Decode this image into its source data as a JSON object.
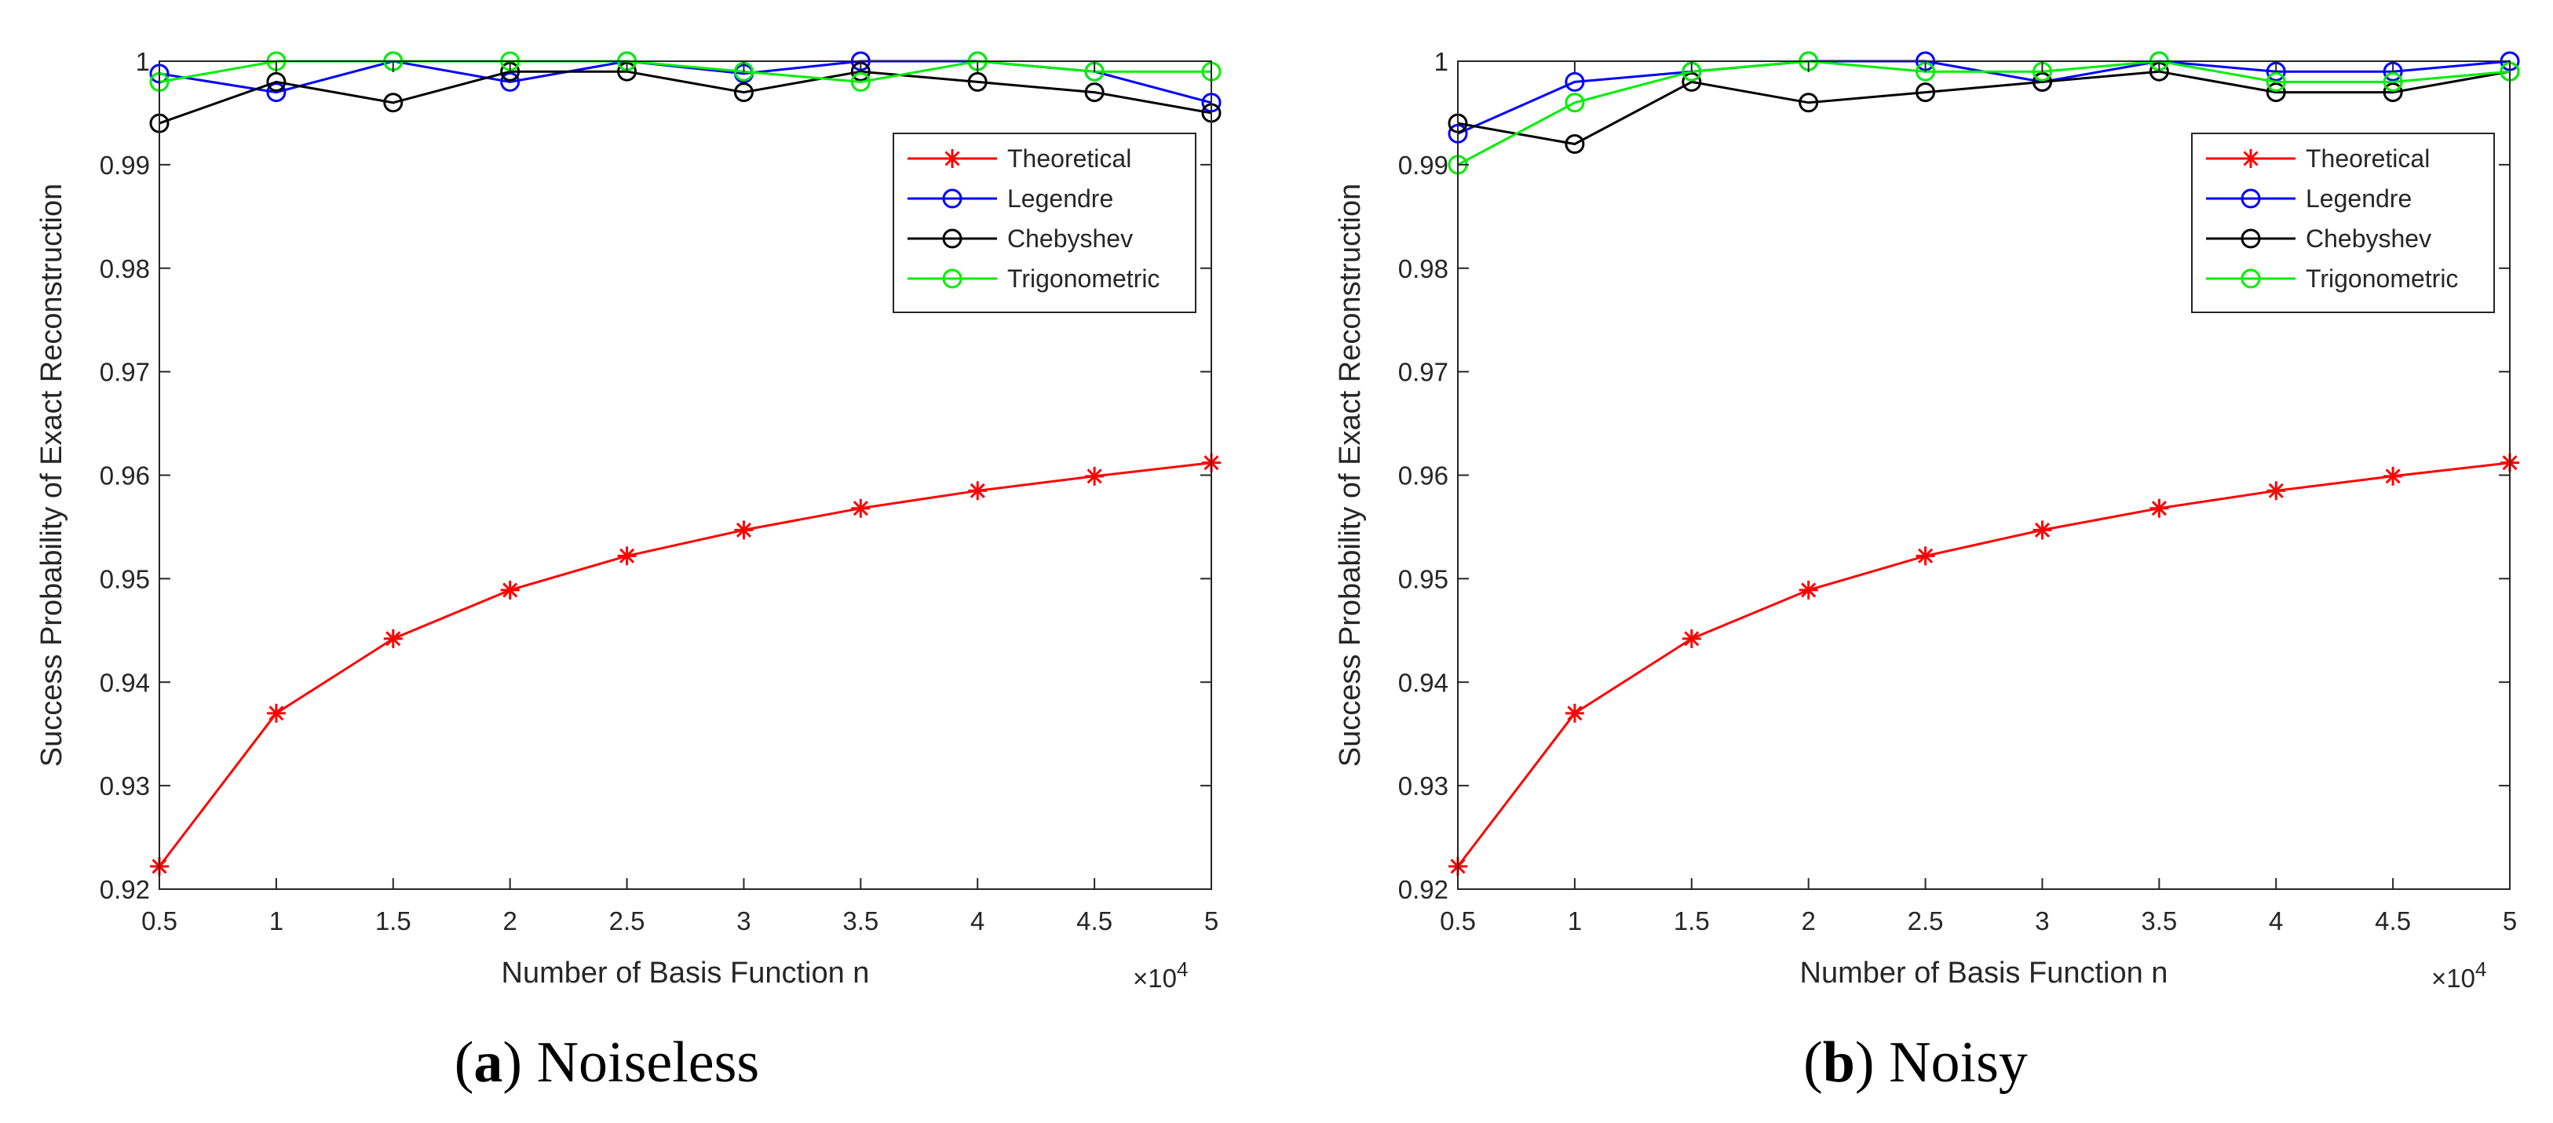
{
  "chart_data": [
    {
      "type": "line",
      "caption_letter": "a",
      "caption_text": "Noiseless",
      "caption_open": "(",
      "caption_close": ")",
      "xlabel": "Number of Basis Function n",
      "ylabel": "Success Probability of Exact Reconstruction",
      "x_exponent_base": "×10",
      "x_exponent_power": "4",
      "xlim": [
        0.5,
        5
      ],
      "ylim": [
        0.92,
        1.0
      ],
      "x_ticks": [
        0.5,
        1,
        1.5,
        2,
        2.5,
        3,
        3.5,
        4,
        4.5,
        5
      ],
      "x_tick_labels": [
        "0.5",
        "1",
        "1.5",
        "2",
        "2.5",
        "3",
        "3.5",
        "4",
        "4.5",
        "5"
      ],
      "y_ticks": [
        0.92,
        0.93,
        0.94,
        0.95,
        0.96,
        0.97,
        0.98,
        0.99,
        1.0
      ],
      "y_tick_labels": [
        "0.92",
        "0.93",
        "0.94",
        "0.95",
        "0.96",
        "0.97",
        "0.98",
        "0.99",
        "1"
      ],
      "legend_position": "top-right",
      "x": [
        0.5,
        1,
        1.5,
        2,
        2.5,
        3,
        3.5,
        4,
        4.5,
        5
      ],
      "series": [
        {
          "name": "Theoretical",
          "color": "#ff0000",
          "marker": "star",
          "values": [
            0.9222,
            0.937,
            0.9442,
            0.9489,
            0.9522,
            0.9547,
            0.9568,
            0.9585,
            0.9599,
            0.9612
          ]
        },
        {
          "name": "Legendre",
          "color": "#0000ff",
          "marker": "circle",
          "values": [
            0.9988,
            0.997,
            1.0,
            0.998,
            1.0,
            0.9988,
            1.0,
            1.0,
            0.999,
            0.996
          ]
        },
        {
          "name": "Chebyshev",
          "color": "#000000",
          "marker": "circle",
          "values": [
            0.994,
            0.998,
            0.996,
            0.999,
            0.999,
            0.997,
            0.999,
            0.998,
            0.997,
            0.995
          ]
        },
        {
          "name": "Trigonometric",
          "color": "#00ee00",
          "marker": "circle",
          "values": [
            0.998,
            1.0,
            1.0,
            1.0,
            1.0,
            0.999,
            0.998,
            1.0,
            0.999,
            0.999
          ]
        }
      ]
    },
    {
      "type": "line",
      "caption_letter": "b",
      "caption_text": "Noisy",
      "caption_open": "(",
      "caption_close": ")",
      "xlabel": "Number of Basis Function n",
      "ylabel": "Success Probability of Exact Reconstruction",
      "x_exponent_base": "×10",
      "x_exponent_power": "4",
      "xlim": [
        0.5,
        5
      ],
      "ylim": [
        0.92,
        1.0
      ],
      "x_ticks": [
        0.5,
        1,
        1.5,
        2,
        2.5,
        3,
        3.5,
        4,
        4.5,
        5
      ],
      "x_tick_labels": [
        "0.5",
        "1",
        "1.5",
        "2",
        "2.5",
        "3",
        "3.5",
        "4",
        "4.5",
        "5"
      ],
      "y_ticks": [
        0.92,
        0.93,
        0.94,
        0.95,
        0.96,
        0.97,
        0.98,
        0.99,
        1.0
      ],
      "y_tick_labels": [
        "0.92",
        "0.93",
        "0.94",
        "0.95",
        "0.96",
        "0.97",
        "0.98",
        "0.99",
        "1"
      ],
      "legend_position": "top-right",
      "x": [
        0.5,
        1,
        1.5,
        2,
        2.5,
        3,
        3.5,
        4,
        4.5,
        5
      ],
      "series": [
        {
          "name": "Theoretical",
          "color": "#ff0000",
          "marker": "star",
          "values": [
            0.9222,
            0.937,
            0.9442,
            0.9489,
            0.9522,
            0.9547,
            0.9568,
            0.9585,
            0.9599,
            0.9612
          ]
        },
        {
          "name": "Legendre",
          "color": "#0000ff",
          "marker": "circle",
          "values": [
            0.993,
            0.998,
            0.999,
            1.0,
            1.0,
            0.998,
            1.0,
            0.999,
            0.999,
            1.0
          ]
        },
        {
          "name": "Chebyshev",
          "color": "#000000",
          "marker": "circle",
          "values": [
            0.994,
            0.992,
            0.998,
            0.996,
            0.997,
            0.998,
            0.999,
            0.997,
            0.997,
            0.999
          ]
        },
        {
          "name": "Trigonometric",
          "color": "#00ee00",
          "marker": "circle",
          "values": [
            0.99,
            0.996,
            0.999,
            1.0,
            0.999,
            0.999,
            1.0,
            0.998,
            0.998,
            0.999
          ]
        }
      ]
    }
  ]
}
